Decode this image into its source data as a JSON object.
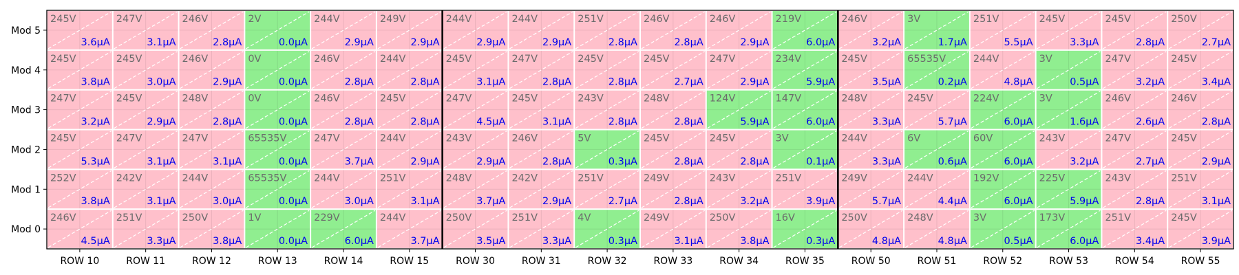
{
  "chart_data": {
    "type": "heatmap",
    "title": "",
    "xlabel": "",
    "ylabel": "",
    "grid": true,
    "legend": "none",
    "columns": [
      "ROW 10",
      "ROW 11",
      "ROW 12",
      "ROW 13",
      "ROW 14",
      "ROW 15",
      "ROW 30",
      "ROW 31",
      "ROW 32",
      "ROW 33",
      "ROW 34",
      "ROW 35",
      "ROW 50",
      "ROW 51",
      "ROW 52",
      "ROW 53",
      "ROW 54",
      "ROW 55"
    ],
    "rows": [
      "Mod 5",
      "Mod 4",
      "Mod 3",
      "Mod 2",
      "Mod 1",
      "Mod 0"
    ],
    "group_size": 6,
    "colors": {
      "normal": "#ffc0cb",
      "highlight": "#90ee90",
      "voltage_text": "#6b6b6b",
      "current_text": "#0000ee"
    },
    "cells": [
      [
        {
          "v": "245V",
          "i": "3.6µA",
          "hl": false
        },
        {
          "v": "247V",
          "i": "3.1µA",
          "hl": false
        },
        {
          "v": "246V",
          "i": "2.8µA",
          "hl": false
        },
        {
          "v": "2V",
          "i": "0.0µA",
          "hl": true
        },
        {
          "v": "244V",
          "i": "2.9µA",
          "hl": false
        },
        {
          "v": "249V",
          "i": "2.9µA",
          "hl": false
        },
        {
          "v": "244V",
          "i": "2.9µA",
          "hl": false
        },
        {
          "v": "244V",
          "i": "2.9µA",
          "hl": false
        },
        {
          "v": "251V",
          "i": "2.8µA",
          "hl": false
        },
        {
          "v": "246V",
          "i": "2.8µA",
          "hl": false
        },
        {
          "v": "246V",
          "i": "2.9µA",
          "hl": false
        },
        {
          "v": "219V",
          "i": "6.0µA",
          "hl": true
        },
        {
          "v": "246V",
          "i": "3.2µA",
          "hl": false
        },
        {
          "v": "3V",
          "i": "1.7µA",
          "hl": true
        },
        {
          "v": "251V",
          "i": "5.5µA",
          "hl": false
        },
        {
          "v": "245V",
          "i": "3.3µA",
          "hl": false
        },
        {
          "v": "245V",
          "i": "2.8µA",
          "hl": false
        },
        {
          "v": "250V",
          "i": "2.7µA",
          "hl": false
        }
      ],
      [
        {
          "v": "245V",
          "i": "3.8µA",
          "hl": false
        },
        {
          "v": "245V",
          "i": "3.0µA",
          "hl": false
        },
        {
          "v": "246V",
          "i": "2.9µA",
          "hl": false
        },
        {
          "v": "0V",
          "i": "0.0µA",
          "hl": true
        },
        {
          "v": "246V",
          "i": "2.8µA",
          "hl": false
        },
        {
          "v": "244V",
          "i": "2.8µA",
          "hl": false
        },
        {
          "v": "245V",
          "i": "3.1µA",
          "hl": false
        },
        {
          "v": "247V",
          "i": "2.8µA",
          "hl": false
        },
        {
          "v": "245V",
          "i": "2.8µA",
          "hl": false
        },
        {
          "v": "245V",
          "i": "2.7µA",
          "hl": false
        },
        {
          "v": "247V",
          "i": "2.9µA",
          "hl": false
        },
        {
          "v": "234V",
          "i": "5.9µA",
          "hl": true
        },
        {
          "v": "245V",
          "i": "3.5µA",
          "hl": false
        },
        {
          "v": "65535V",
          "i": "0.2µA",
          "hl": true
        },
        {
          "v": "244V",
          "i": "4.8µA",
          "hl": false
        },
        {
          "v": "3V",
          "i": "0.5µA",
          "hl": true
        },
        {
          "v": "247V",
          "i": "3.2µA",
          "hl": false
        },
        {
          "v": "245V",
          "i": "3.4µA",
          "hl": false
        }
      ],
      [
        {
          "v": "247V",
          "i": "3.2µA",
          "hl": false
        },
        {
          "v": "245V",
          "i": "2.9µA",
          "hl": false
        },
        {
          "v": "248V",
          "i": "2.8µA",
          "hl": false
        },
        {
          "v": "0V",
          "i": "0.0µA",
          "hl": true
        },
        {
          "v": "246V",
          "i": "2.8µA",
          "hl": false
        },
        {
          "v": "245V",
          "i": "2.8µA",
          "hl": false
        },
        {
          "v": "247V",
          "i": "4.5µA",
          "hl": false
        },
        {
          "v": "245V",
          "i": "3.1µA",
          "hl": false
        },
        {
          "v": "243V",
          "i": "2.8µA",
          "hl": false
        },
        {
          "v": "248V",
          "i": "2.8µA",
          "hl": false
        },
        {
          "v": "124V",
          "i": "5.9µA",
          "hl": true
        },
        {
          "v": "147V",
          "i": "6.0µA",
          "hl": true
        },
        {
          "v": "248V",
          "i": "3.3µA",
          "hl": false
        },
        {
          "v": "245V",
          "i": "5.7µA",
          "hl": false
        },
        {
          "v": "224V",
          "i": "6.0µA",
          "hl": true
        },
        {
          "v": "3V",
          "i": "1.6µA",
          "hl": true
        },
        {
          "v": "246V",
          "i": "2.6µA",
          "hl": false
        },
        {
          "v": "246V",
          "i": "2.8µA",
          "hl": false
        }
      ],
      [
        {
          "v": "245V",
          "i": "5.3µA",
          "hl": false
        },
        {
          "v": "247V",
          "i": "3.1µA",
          "hl": false
        },
        {
          "v": "247V",
          "i": "3.1µA",
          "hl": false
        },
        {
          "v": "65535V",
          "i": "0.0µA",
          "hl": true
        },
        {
          "v": "247V",
          "i": "3.7µA",
          "hl": false
        },
        {
          "v": "244V",
          "i": "2.9µA",
          "hl": false
        },
        {
          "v": "243V",
          "i": "2.9µA",
          "hl": false
        },
        {
          "v": "246V",
          "i": "2.8µA",
          "hl": false
        },
        {
          "v": "5V",
          "i": "0.3µA",
          "hl": true
        },
        {
          "v": "245V",
          "i": "2.8µA",
          "hl": false
        },
        {
          "v": "245V",
          "i": "2.8µA",
          "hl": false
        },
        {
          "v": "3V",
          "i": "0.1µA",
          "hl": true
        },
        {
          "v": "244V",
          "i": "3.3µA",
          "hl": false
        },
        {
          "v": "6V",
          "i": "0.6µA",
          "hl": true
        },
        {
          "v": "60V",
          "i": "6.0µA",
          "hl": true
        },
        {
          "v": "243V",
          "i": "3.2µA",
          "hl": false
        },
        {
          "v": "247V",
          "i": "2.7µA",
          "hl": false
        },
        {
          "v": "245V",
          "i": "2.9µA",
          "hl": false
        }
      ],
      [
        {
          "v": "252V",
          "i": "3.8µA",
          "hl": false
        },
        {
          "v": "242V",
          "i": "3.1µA",
          "hl": false
        },
        {
          "v": "244V",
          "i": "3.0µA",
          "hl": false
        },
        {
          "v": "65535V",
          "i": "0.0µA",
          "hl": true
        },
        {
          "v": "244V",
          "i": "3.0µA",
          "hl": false
        },
        {
          "v": "251V",
          "i": "3.1µA",
          "hl": false
        },
        {
          "v": "248V",
          "i": "3.7µA",
          "hl": false
        },
        {
          "v": "242V",
          "i": "2.9µA",
          "hl": false
        },
        {
          "v": "251V",
          "i": "2.7µA",
          "hl": false
        },
        {
          "v": "249V",
          "i": "2.8µA",
          "hl": false
        },
        {
          "v": "243V",
          "i": "3.2µA",
          "hl": false
        },
        {
          "v": "251V",
          "i": "3.9µA",
          "hl": false
        },
        {
          "v": "249V",
          "i": "5.7µA",
          "hl": false
        },
        {
          "v": "244V",
          "i": "4.4µA",
          "hl": false
        },
        {
          "v": "192V",
          "i": "6.0µA",
          "hl": true
        },
        {
          "v": "225V",
          "i": "5.9µA",
          "hl": true
        },
        {
          "v": "243V",
          "i": "2.8µA",
          "hl": false
        },
        {
          "v": "251V",
          "i": "3.1µA",
          "hl": false
        }
      ],
      [
        {
          "v": "246V",
          "i": "4.5µA",
          "hl": false
        },
        {
          "v": "251V",
          "i": "3.3µA",
          "hl": false
        },
        {
          "v": "250V",
          "i": "3.8µA",
          "hl": false
        },
        {
          "v": "1V",
          "i": "0.0µA",
          "hl": true
        },
        {
          "v": "229V",
          "i": "6.0µA",
          "hl": true
        },
        {
          "v": "244V",
          "i": "3.7µA",
          "hl": false
        },
        {
          "v": "250V",
          "i": "3.5µA",
          "hl": false
        },
        {
          "v": "251V",
          "i": "3.3µA",
          "hl": false
        },
        {
          "v": "4V",
          "i": "0.3µA",
          "hl": true
        },
        {
          "v": "249V",
          "i": "3.1µA",
          "hl": false
        },
        {
          "v": "250V",
          "i": "3.8µA",
          "hl": false
        },
        {
          "v": "16V",
          "i": "0.3µA",
          "hl": true
        },
        {
          "v": "250V",
          "i": "4.8µA",
          "hl": false
        },
        {
          "v": "248V",
          "i": "4.8µA",
          "hl": false
        },
        {
          "v": "3V",
          "i": "0.5µA",
          "hl": true
        },
        {
          "v": "173V",
          "i": "6.0µA",
          "hl": true
        },
        {
          "v": "251V",
          "i": "3.4µA",
          "hl": false
        },
        {
          "v": "245V",
          "i": "3.9µA",
          "hl": false
        }
      ]
    ]
  }
}
